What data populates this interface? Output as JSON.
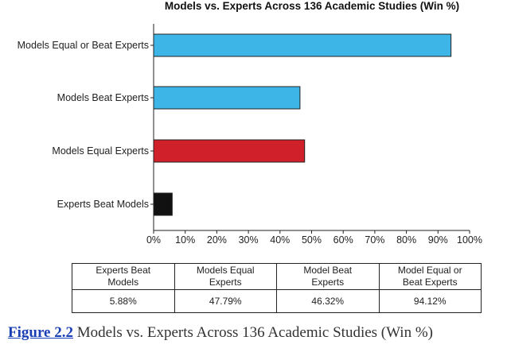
{
  "chart_data": {
    "type": "bar",
    "orientation": "horizontal",
    "title": "Models vs. Experts Across 136 Academic Studies (Win %)",
    "categories": [
      "Models Equal or Beat Experts",
      "Models Beat Experts",
      "Models Equal Experts",
      "Experts Beat Models"
    ],
    "values": [
      94.12,
      46.32,
      47.79,
      5.88
    ],
    "colors": [
      "#3db5e6",
      "#3db5e6",
      "#d0202a",
      "#111111"
    ],
    "xlim": [
      0,
      100
    ],
    "xticks": [
      "0%",
      "10%",
      "20%",
      "30%",
      "40%",
      "50%",
      "60%",
      "70%",
      "80%",
      "90%",
      "100%"
    ],
    "xlabel": "",
    "ylabel": "",
    "grid": false,
    "legend": "none"
  },
  "table": {
    "headers": [
      [
        "Experts Beat",
        "Models"
      ],
      [
        "Models Equal",
        "Experts"
      ],
      [
        "Model Beat",
        "Experts"
      ],
      [
        "Model Equal or",
        "Beat Experts"
      ]
    ],
    "values": [
      "5.88%",
      "47.79%",
      "46.32%",
      "94.12%"
    ]
  },
  "caption": {
    "label": "Figure 2.2",
    "text": "Models vs. Experts Across 136 Academic Studies (Win %)"
  }
}
